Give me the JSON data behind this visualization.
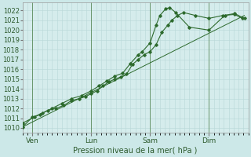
{
  "xlabel": "Pression niveau de la mer( hPa )",
  "bg_color": "#cce8e8",
  "grid_color_major": "#aacccc",
  "grid_color_minor": "#bbdddd",
  "plot_bg": "#ddeeff",
  "line_color": "#2d6a2d",
  "ylim": [
    1009.5,
    1022.8
  ],
  "yticks": [
    1010,
    1011,
    1012,
    1013,
    1014,
    1015,
    1016,
    1017,
    1018,
    1019,
    1020,
    1021,
    1022
  ],
  "day_labels": [
    "Ven",
    "Lun",
    "Sam",
    "Dim"
  ],
  "day_positions": [
    0.5,
    3.5,
    6.5,
    9.5
  ],
  "vline_positions": [
    0.5,
    3.5,
    6.5,
    9.5
  ],
  "xlim": [
    0,
    11.5
  ],
  "series1_x": [
    0.0,
    0.5,
    0.9,
    1.3,
    1.7,
    2.1,
    2.5,
    2.9,
    3.2,
    3.5,
    3.8,
    4.1,
    4.4,
    4.7,
    5.0,
    5.3,
    5.6,
    5.9,
    6.2,
    6.5,
    6.8,
    7.1,
    7.4,
    7.6,
    7.9,
    8.2,
    8.8,
    9.5,
    10.2,
    10.8,
    11.2
  ],
  "series1_y": [
    1010.1,
    1011.1,
    1011.4,
    1011.8,
    1012.0,
    1012.3,
    1012.8,
    1013.0,
    1013.2,
    1013.5,
    1013.8,
    1014.3,
    1014.7,
    1015.0,
    1015.2,
    1015.5,
    1016.5,
    1017.0,
    1017.5,
    1017.8,
    1018.5,
    1019.8,
    1020.5,
    1021.0,
    1021.5,
    1021.8,
    1021.5,
    1021.2,
    1021.5,
    1021.6,
    1021.2
  ],
  "series2_x": [
    0.0,
    0.6,
    1.0,
    1.5,
    2.0,
    2.5,
    3.0,
    3.5,
    3.9,
    4.3,
    4.7,
    5.1,
    5.5,
    5.9,
    6.1,
    6.5,
    6.8,
    7.0,
    7.3,
    7.5,
    7.8,
    8.5,
    9.5,
    10.3,
    10.8,
    11.3
  ],
  "series2_y": [
    1010.5,
    1011.1,
    1011.5,
    1012.0,
    1012.5,
    1013.0,
    1013.3,
    1013.8,
    1014.3,
    1014.8,
    1015.3,
    1015.6,
    1016.6,
    1017.5,
    1017.8,
    1018.7,
    1020.5,
    1021.5,
    1022.2,
    1022.3,
    1021.8,
    1020.3,
    1020.0,
    1021.5,
    1021.7,
    1021.2
  ],
  "trend_x": [
    0.0,
    11.3
  ],
  "trend_y": [
    1010.1,
    1021.5
  ]
}
